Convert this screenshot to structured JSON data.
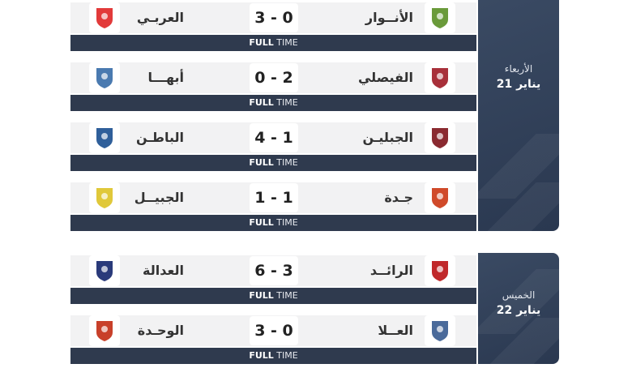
{
  "status_label_bold": "FULL",
  "status_label_rest": "TIME",
  "days": [
    {
      "day": "الأربعاء",
      "date": "21 يناير",
      "matches": [
        {
          "home": "الأنــوار",
          "away": "العربـي",
          "score": "3 - 0",
          "home_color": "#6a9a3a",
          "away_color": "#e23a3a"
        },
        {
          "home": "الفيصلي",
          "away": "أبهـــا",
          "score": "0 - 2",
          "home_color": "#a8303a",
          "away_color": "#4a7ab0"
        },
        {
          "home": "الجبليـن",
          "away": "الباطـن",
          "score": "4 - 1",
          "home_color": "#8a2a30",
          "away_color": "#2f5f9a"
        },
        {
          "home": "جـدة",
          "away": "الجبيــل",
          "score": "1 - 1",
          "home_color": "#d04a2a",
          "away_color": "#e0c83a"
        }
      ]
    },
    {
      "day": "الخميس",
      "date": "22 يناير",
      "matches": [
        {
          "home": "الرائــد",
          "away": "العدالة",
          "score": "6 - 3",
          "home_color": "#c0282a",
          "away_color": "#2a3a7a"
        },
        {
          "home": "العــلا",
          "away": "الوحـدة",
          "score": "3 - 0",
          "home_color": "#4a6a9a",
          "away_color": "#c8402a"
        }
      ]
    }
  ]
}
